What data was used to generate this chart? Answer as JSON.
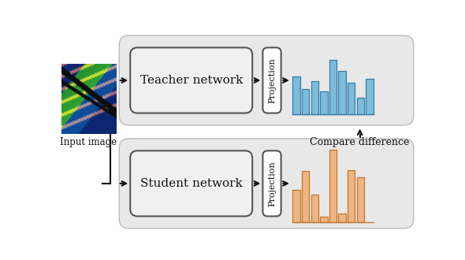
{
  "teacher_network_label": "Teacher network",
  "student_network_label": "Student network",
  "projection_label": "Projection",
  "input_image_label": "Input image",
  "compare_label": "Compare difference",
  "teacher_bars": [
    0.62,
    0.42,
    0.55,
    0.38,
    0.9,
    0.72,
    0.52,
    0.28,
    0.58
  ],
  "student_bars": [
    0.45,
    0.7,
    0.38,
    0.08,
    1.0,
    0.12,
    0.72,
    0.62,
    0.0
  ],
  "teacher_bar_color": "#7bbcdb",
  "teacher_bar_edge": "#3a7ca8",
  "student_bar_color": "#f0b482",
  "student_bar_edge": "#c07830",
  "panel_bg": "#e8e8e8",
  "inner_box_bg": "#f0f0f0",
  "white": "#ffffff",
  "fig_bg": "#ffffff",
  "arrow_color": "#111111",
  "text_color": "#111111",
  "panel_edge": "#bbbbbb",
  "inner_edge": "#555555"
}
